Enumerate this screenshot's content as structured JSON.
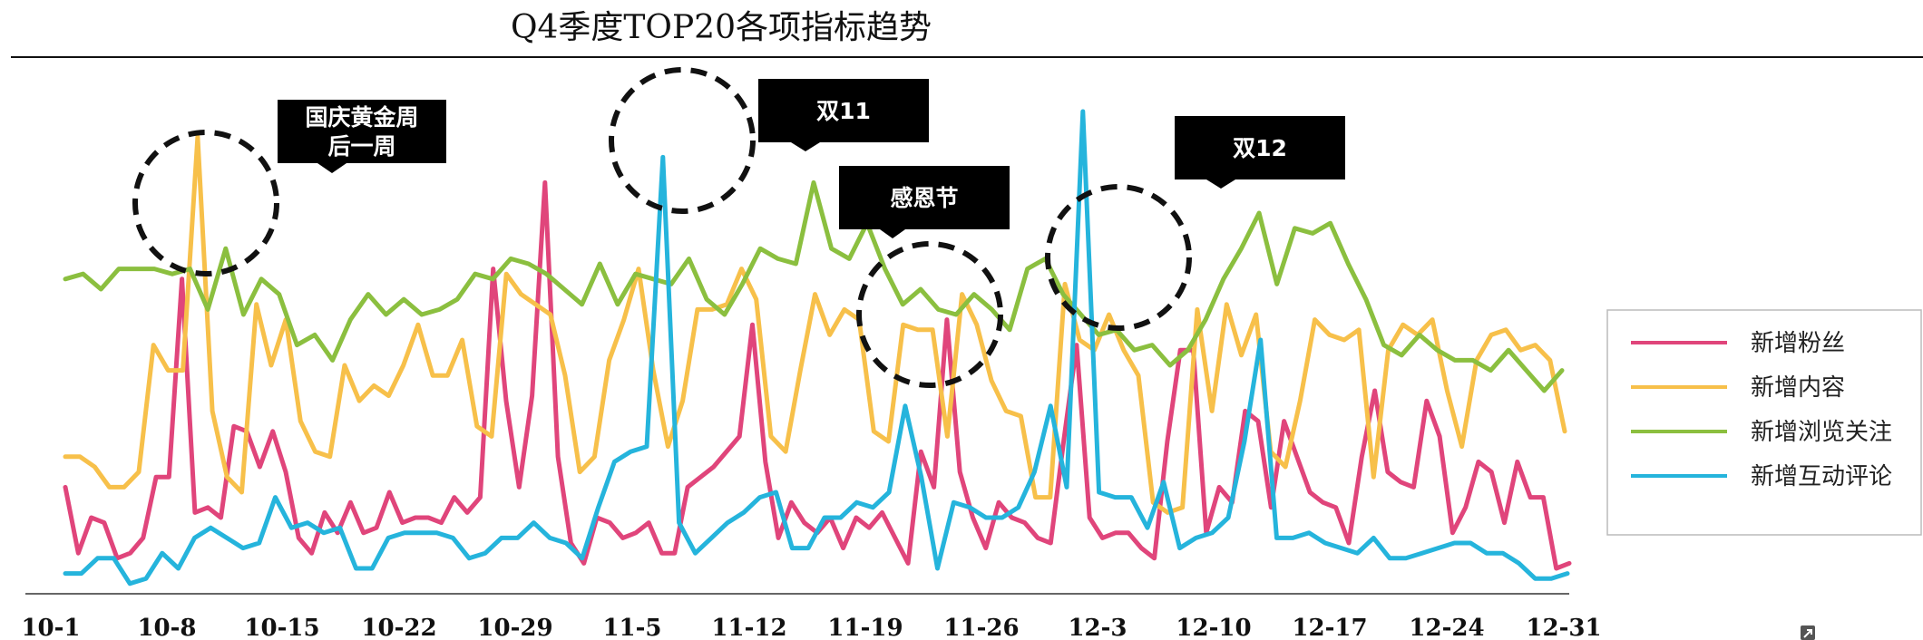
{
  "chart_data": {
    "type": "line",
    "title": "Q4季度TOP20各项指标趋势",
    "x_tick_labels": [
      "10-1",
      "10-8",
      "10-15",
      "10-22",
      "10-29",
      "11-5",
      "11-12",
      "11-19",
      "11-26",
      "12-3",
      "12-10",
      "12-17",
      "12-24",
      "12-31"
    ],
    "x_start": "10-1",
    "x_end": "12-31",
    "ylim": [
      0,
      100
    ],
    "grid": false,
    "legend_position": "right",
    "series": [
      {
        "name": "新增粉丝",
        "color": "#E0457B",
        "values": [
          21,
          8,
          15,
          14,
          7,
          8,
          11,
          23,
          23,
          62,
          16,
          17,
          15,
          33,
          32,
          25,
          32,
          24,
          11,
          8,
          16,
          12,
          18,
          12,
          13,
          20,
          14,
          15,
          15,
          14,
          19,
          16,
          19,
          64,
          38,
          21,
          39,
          81,
          27,
          10,
          6,
          15,
          14,
          11,
          12,
          14,
          8,
          8,
          21,
          23,
          25,
          28,
          31,
          53,
          26,
          11,
          18,
          14,
          12,
          15,
          9,
          15,
          13,
          16,
          11,
          6,
          28,
          21,
          54,
          24,
          15,
          9,
          18,
          15,
          14,
          11,
          10,
          30,
          49,
          15,
          11,
          12,
          12,
          9,
          7,
          30,
          48,
          48,
          12,
          21,
          18,
          36,
          34,
          17,
          34,
          27,
          20,
          18,
          17,
          10,
          27,
          40,
          24,
          22,
          21,
          38,
          31,
          12,
          17,
          26,
          24,
          14,
          26,
          19,
          19,
          5,
          6
        ]
      },
      {
        "name": "新增内容",
        "color": "#F7C04A",
        "values": [
          27,
          27,
          25,
          21,
          21,
          24,
          49,
          44,
          44,
          90,
          36,
          23,
          20,
          57,
          45,
          54,
          34,
          28,
          27,
          45,
          38,
          41,
          39,
          45,
          53,
          43,
          43,
          50,
          33,
          31,
          63,
          59,
          57,
          55,
          43,
          24,
          27,
          46,
          54,
          64,
          44,
          29,
          38,
          56,
          56,
          57,
          64,
          58,
          31,
          28,
          44,
          59,
          51,
          56,
          54,
          32,
          30,
          53,
          52,
          52,
          31,
          59,
          53,
          42,
          36,
          35,
          19,
          19,
          61,
          50,
          48,
          55,
          48,
          43,
          18,
          16,
          17,
          56,
          36,
          57,
          47,
          55,
          28,
          25,
          38,
          54,
          51,
          50,
          52,
          23,
          48,
          53,
          51,
          54,
          40,
          29,
          46,
          51,
          52,
          48,
          49,
          46,
          32
        ]
      },
      {
        "name": "新增浏览关注",
        "color": "#8BBF3F",
        "values": [
          62,
          63,
          60,
          64,
          64,
          64,
          63,
          64,
          56,
          68,
          55,
          62,
          59,
          49,
          51,
          46,
          54,
          59,
          55,
          58,
          55,
          56,
          58,
          63,
          62,
          66,
          65,
          63,
          60,
          57,
          65,
          57,
          63,
          62,
          61,
          66,
          58,
          55,
          61,
          68,
          66,
          65,
          81,
          68,
          66,
          73,
          64,
          57,
          60,
          56,
          55,
          59,
          56,
          52,
          64,
          66,
          59,
          55,
          51,
          52,
          48,
          49,
          45,
          48,
          54,
          62,
          68,
          75,
          61,
          72,
          71,
          73,
          65,
          58,
          49,
          47,
          51,
          48,
          46,
          46,
          44,
          48,
          44,
          40,
          44
        ]
      },
      {
        "name": "新增互动评论",
        "color": "#25B4DC",
        "values": [
          4,
          4,
          7,
          7,
          2,
          3,
          8,
          5,
          11,
          13,
          11,
          9,
          10,
          19,
          13,
          14,
          12,
          13,
          5,
          5,
          11,
          12,
          12,
          12,
          11,
          7,
          8,
          11,
          11,
          14,
          11,
          10,
          7,
          17,
          26,
          28,
          29,
          86,
          14,
          8,
          11,
          14,
          16,
          19,
          20,
          9,
          9,
          15,
          15,
          18,
          17,
          20,
          37,
          23,
          5,
          18,
          17,
          15,
          15,
          17,
          24,
          37,
          21,
          95,
          20,
          19,
          19,
          13,
          22,
          9,
          11,
          12,
          15,
          30,
          50,
          11,
          11,
          12,
          10,
          9,
          8,
          11,
          7,
          7,
          8,
          9,
          10,
          10,
          8,
          8,
          6,
          3,
          3,
          4
        ]
      }
    ],
    "annotations": [
      {
        "label_lines": [
          "国庆黄金周",
          "后一周"
        ]
      },
      {
        "label_lines": [
          "双11"
        ]
      },
      {
        "label_lines": [
          "感恩节"
        ]
      },
      {
        "label_lines": [
          "双12"
        ]
      }
    ]
  }
}
